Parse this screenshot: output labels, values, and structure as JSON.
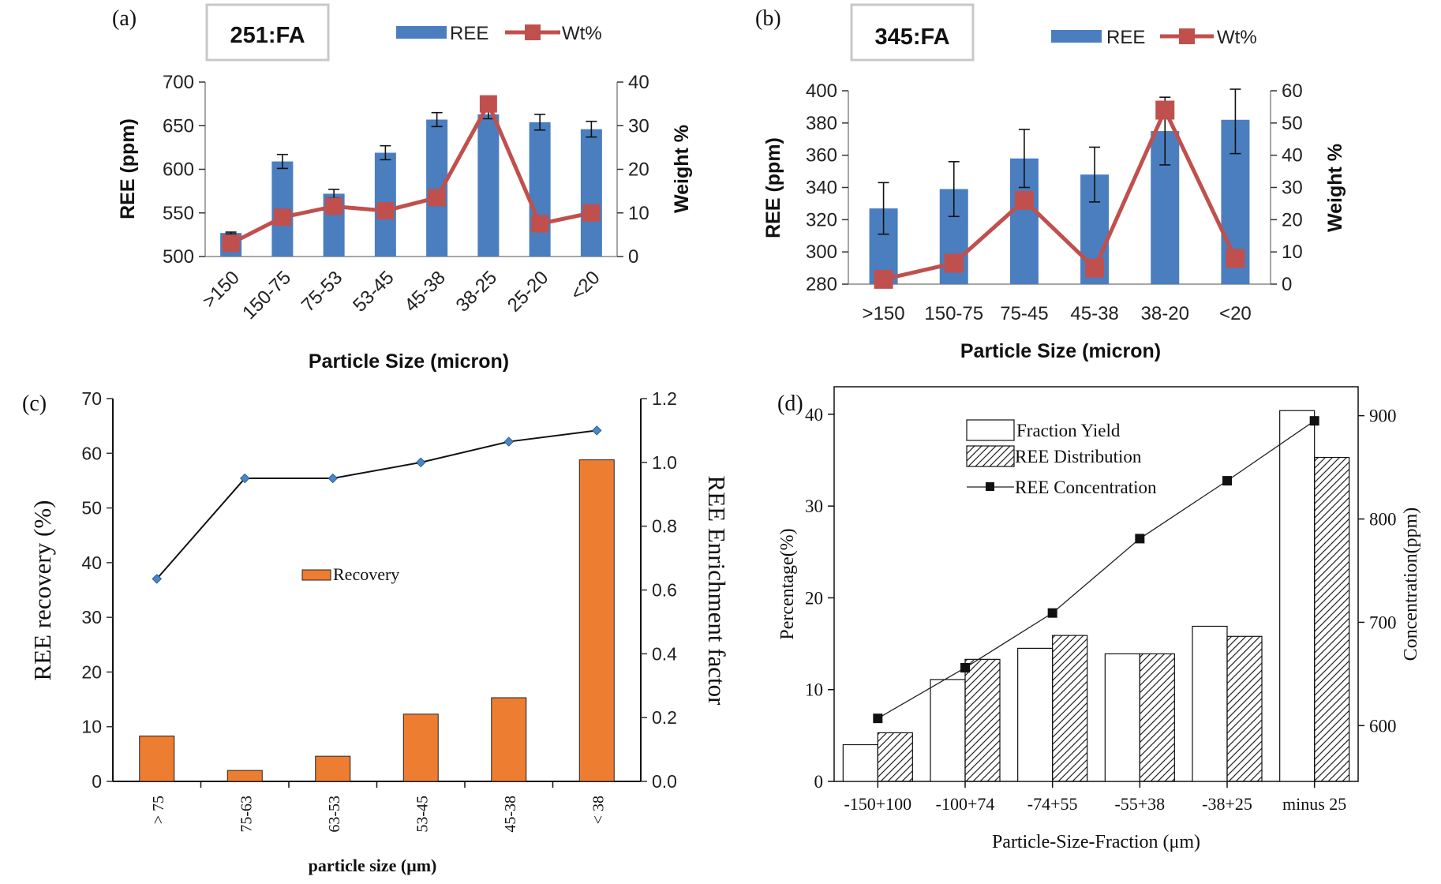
{
  "colors": {
    "ree_bar": "#4a7ebf",
    "wt_line": "#c0504d",
    "recovery_bar": "#ed7d31",
    "enrich_line": "#111111",
    "enrich_marker": "#4a86c8"
  },
  "chart_data": [
    {
      "type": "bar",
      "panel": "(a)",
      "title": "251:FA",
      "xlabel": "Particle Size (micron)",
      "ylabel": "REE (ppm)",
      "y2label": "Weight %",
      "categories": [
        ">150",
        "150-75",
        "75-53",
        "53-45",
        "45-38",
        "38-25",
        "25-20",
        "<20"
      ],
      "ylim": [
        500,
        700
      ],
      "yticks": [
        "500",
        "550",
        "600",
        "650",
        "700"
      ],
      "y2lim": [
        0,
        40
      ],
      "y2ticks": [
        "0",
        "10",
        "20",
        "30",
        "40"
      ],
      "series": [
        {
          "name": "REE",
          "type": "bar",
          "axis": "left",
          "values": [
            527,
            609,
            572,
            619,
            657,
            663,
            654,
            646
          ],
          "errors": [
            1,
            8,
            5,
            8,
            8,
            5,
            9,
            9
          ]
        },
        {
          "name": "Wt%",
          "type": "line",
          "axis": "right",
          "values": [
            3,
            9,
            11.5,
            10.5,
            13.5,
            35,
            7.5,
            10
          ]
        }
      ]
    },
    {
      "type": "bar",
      "panel": "(b)",
      "title": "345:FA",
      "xlabel": "Particle Size (micron)",
      "ylabel": "REE (ppm)",
      "y2label": "Weight %",
      "categories": [
        ">150",
        "150-75",
        "75-45",
        "45-38",
        "38-20",
        "<20"
      ],
      "ylim": [
        280,
        400
      ],
      "yticks": [
        "280",
        "300",
        "320",
        "340",
        "360",
        "380",
        "400"
      ],
      "y2lim": [
        0,
        60
      ],
      "y2ticks": [
        "0",
        "10",
        "20",
        "30",
        "40",
        "50",
        "60"
      ],
      "series": [
        {
          "name": "REE",
          "type": "bar",
          "axis": "left",
          "values": [
            327,
            339,
            358,
            348,
            375,
            382
          ],
          "errors": [
            16,
            17,
            18,
            17,
            21,
            21
          ]
        },
        {
          "name": "Wt%",
          "type": "line",
          "axis": "right",
          "values": [
            1.5,
            6.5,
            26,
            5,
            54,
            8
          ]
        }
      ]
    },
    {
      "type": "bar",
      "panel": "(c)",
      "title": "",
      "xlabel": "particle size (μm)",
      "ylabel": "REE recovery (%)",
      "y2label": "REE Enrichment factor",
      "categories": [
        "> 75",
        "75-63",
        "63-53",
        "53-45",
        "45-38",
        "< 38"
      ],
      "ylim": [
        0,
        70
      ],
      "yticks": [
        "0",
        "10",
        "20",
        "30",
        "40",
        "50",
        "60",
        "70"
      ],
      "y2lim": [
        0,
        1.2
      ],
      "y2ticks": [
        "0.0",
        "0.2",
        "0.4",
        "0.6",
        "0.8",
        "1.0",
        "1.2"
      ],
      "legend_label": "Recovery",
      "series": [
        {
          "name": "Recovery",
          "type": "bar",
          "axis": "left",
          "values": [
            8.3,
            2,
            4.6,
            12.3,
            15.3,
            58.8
          ]
        },
        {
          "name": "Enrichment factor",
          "type": "line",
          "axis": "right",
          "values": [
            0.635,
            0.95,
            0.95,
            1.0,
            1.065,
            1.1
          ]
        }
      ]
    },
    {
      "type": "bar",
      "panel": "(d)",
      "title": "",
      "xlabel": "Particle-Size-Fraction (μm)",
      "ylabel": "Percentage(%)",
      "y2label": "Concentration(ppm)",
      "categories": [
        "-150+100",
        "-100+74",
        "-74+55",
        "-55+38",
        "-38+25",
        "minus 25"
      ],
      "ylim": [
        0,
        43
      ],
      "yticks": [
        "0",
        "10",
        "20",
        "30",
        "40"
      ],
      "y2lim": [
        546,
        928
      ],
      "y2ticks": [
        "600",
        "700",
        "800",
        "900"
      ],
      "series": [
        {
          "name": "Fraction Yield",
          "type": "bar",
          "axis": "left",
          "values": [
            4,
            11.1,
            14.5,
            13.9,
            16.9,
            40.4
          ]
        },
        {
          "name": "REE Distribution",
          "type": "bar",
          "axis": "left",
          "values": [
            5.3,
            13.3,
            15.9,
            13.9,
            15.8,
            35.3
          ]
        },
        {
          "name": "REE Concentration",
          "type": "line",
          "axis": "right",
          "values": [
            607,
            656,
            709,
            781,
            837,
            895
          ]
        }
      ]
    }
  ]
}
